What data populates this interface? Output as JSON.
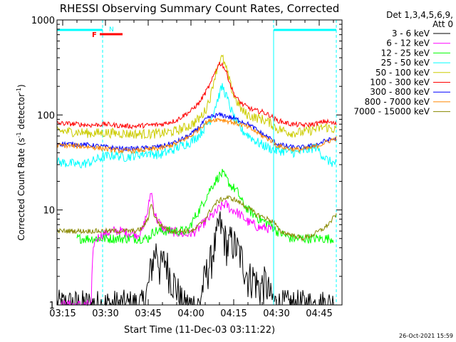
{
  "chart_data": {
    "type": "line",
    "title": "RHESSI Observing Summary Count Rates, Corrected",
    "xlabel": "Start Time (11-Dec-03 03:11:22)",
    "ylabel_main": "Corrected Count Rate (s",
    "ylabel_sup1": "-1",
    "ylabel_mid": " detector",
    "ylabel_sup2": "-1",
    "ylabel_end": ")",
    "yscale": "log",
    "ylim": [
      1,
      1000
    ],
    "xlim_minutes": [
      -2,
      98
    ],
    "yticks": [
      {
        "value": 1,
        "label": "1"
      },
      {
        "value": 10,
        "label": "10"
      },
      {
        "value": 100,
        "label": "100"
      },
      {
        "value": 1000,
        "label": "1000"
      }
    ],
    "xticks": [
      {
        "value": 0,
        "label": "03:15"
      },
      {
        "value": 15,
        "label": "03:30"
      },
      {
        "value": 30,
        "label": "03:45"
      },
      {
        "value": 45,
        "label": "04:00"
      },
      {
        "value": 60,
        "label": "04:15"
      },
      {
        "value": 75,
        "label": "04:30"
      },
      {
        "value": 90,
        "label": "04:45"
      }
    ],
    "legend_header": [
      "Det 1,3,4,5,6,9,",
      "Att 0"
    ],
    "night_markers": [
      {
        "label": "N",
        "start": -2,
        "end": 14
      },
      {
        "label": "",
        "start": 74,
        "end": 96
      }
    ],
    "saa_dashed_lines": [
      14,
      74,
      96
    ],
    "flare_flag": {
      "label": "F",
      "start": 10,
      "end": 18
    },
    "series": [
      {
        "name": "3 - 6 keV",
        "color": "#000000",
        "x": [
          -2,
          5,
          10,
          11,
          13,
          16,
          20,
          28,
          30,
          31,
          33,
          34,
          36,
          38,
          40,
          42,
          44,
          46,
          48,
          50,
          52,
          53,
          54,
          55,
          56,
          57,
          58,
          59,
          60,
          61,
          62,
          63,
          65,
          67,
          69,
          71,
          73,
          75,
          77,
          80,
          83,
          86,
          89,
          92,
          95
        ],
        "values": [
          1,
          1,
          1,
          1,
          1,
          1,
          1,
          1,
          1.5,
          2.5,
          4,
          2.5,
          3,
          2,
          1.5,
          1,
          1,
          1,
          1,
          2,
          3,
          4,
          5,
          7.5,
          6,
          5,
          4,
          5,
          4.5,
          4,
          3.5,
          3,
          2,
          2,
          1.5,
          1.8,
          1.2,
          1,
          1,
          1,
          1,
          1,
          1,
          1,
          1
        ]
      },
      {
        "name": "6 - 12 keV",
        "color": "#ff00ff",
        "x": [
          -2,
          5,
          10,
          11,
          12,
          14,
          16,
          18,
          20,
          22,
          24,
          26,
          28,
          30,
          31,
          32,
          33,
          35,
          37,
          40,
          43,
          46,
          48,
          50,
          52,
          54,
          55,
          56,
          57,
          58,
          59,
          60,
          61,
          62,
          63,
          65,
          67,
          69,
          71,
          73,
          74
        ],
        "values": [
          1,
          1,
          1,
          4.5,
          5,
          5.5,
          5.8,
          6,
          6,
          5.8,
          5.7,
          5.5,
          6,
          10,
          16,
          10,
          8,
          6.5,
          6,
          5.8,
          5.5,
          5.8,
          6.5,
          7.5,
          8.5,
          9.5,
          10.5,
          11,
          11.5,
          11,
          10,
          10,
          9.5,
          9,
          8.5,
          7.5,
          7,
          6.5,
          6.5,
          6.3,
          6
        ]
      },
      {
        "name": "12 - 25 keV",
        "color": "#00ff00",
        "x": [
          5,
          10,
          14,
          18,
          22,
          26,
          30,
          32,
          34,
          36,
          40,
          44,
          46,
          48,
          50,
          51,
          52,
          53,
          54,
          55,
          56,
          57,
          58,
          59,
          60,
          61,
          62,
          63,
          65,
          67,
          69,
          71,
          73,
          75,
          80,
          85,
          90,
          95
        ],
        "values": [
          5,
          5,
          5,
          5,
          5,
          5,
          5,
          6,
          6,
          6,
          6,
          6,
          8,
          10,
          13,
          15,
          17,
          19,
          21,
          23,
          24,
          22,
          20,
          18,
          17,
          16,
          14,
          12,
          10,
          9,
          8,
          7.5,
          7,
          6,
          5,
          5,
          5,
          5
        ]
      },
      {
        "name": "25 - 50 keV",
        "color": "#00ffff",
        "x": [
          -2,
          2,
          6,
          10,
          14,
          18,
          22,
          26,
          30,
          34,
          38,
          42,
          45,
          48,
          50,
          52,
          53,
          54,
          55,
          56,
          57,
          58,
          59,
          60,
          61,
          62,
          63,
          65,
          67,
          69,
          71,
          73,
          75,
          77,
          79,
          82,
          85,
          87,
          89,
          91,
          93,
          95,
          96
        ],
        "values": [
          32,
          31,
          30,
          32,
          36,
          38,
          36,
          38,
          40,
          38,
          42,
          48,
          52,
          62,
          75,
          90,
          110,
          135,
          165,
          200,
          170,
          140,
          115,
          95,
          82,
          75,
          68,
          62,
          55,
          50,
          47,
          44,
          42,
          42,
          41,
          40,
          42,
          44,
          46,
          38,
          33,
          31,
          31
        ]
      },
      {
        "name": "50 - 100 keV",
        "color": "#cccc00",
        "x": [
          -2,
          5,
          10,
          15,
          20,
          25,
          30,
          35,
          40,
          45,
          48,
          50,
          52,
          53,
          54,
          55,
          56,
          57,
          58,
          59,
          60,
          61,
          62,
          63,
          65,
          67,
          70,
          73,
          75,
          80,
          85,
          88,
          90,
          92,
          94,
          96
        ],
        "values": [
          68,
          66,
          64,
          65,
          64,
          63,
          63,
          64,
          68,
          78,
          92,
          110,
          160,
          230,
          300,
          370,
          400,
          330,
          260,
          200,
          160,
          140,
          125,
          110,
          100,
          95,
          90,
          82,
          72,
          65,
          66,
          70,
          72,
          75,
          72,
          70
        ]
      },
      {
        "name": "100 - 300 keV",
        "color": "#ff0000",
        "x": [
          -2,
          5,
          10,
          15,
          20,
          25,
          30,
          35,
          40,
          45,
          48,
          50,
          52,
          53,
          54,
          55,
          56,
          57,
          58,
          59,
          60,
          61,
          62,
          63,
          65,
          67,
          70,
          73,
          75,
          80,
          85,
          88,
          90,
          92,
          94,
          96
        ],
        "values": [
          82,
          80,
          78,
          80,
          77,
          76,
          78,
          80,
          88,
          110,
          135,
          170,
          215,
          260,
          310,
          350,
          340,
          300,
          250,
          200,
          170,
          150,
          140,
          130,
          120,
          112,
          108,
          98,
          88,
          80,
          78,
          80,
          82,
          86,
          83,
          80
        ]
      },
      {
        "name": "300 - 800 keV",
        "color": "#0000ff",
        "x": [
          -2,
          5,
          10,
          15,
          20,
          25,
          30,
          35,
          40,
          45,
          48,
          50,
          52,
          54,
          55,
          56,
          57,
          58,
          59,
          60,
          62,
          65,
          68,
          70,
          73,
          75,
          78,
          80,
          83,
          85,
          87,
          90,
          92,
          94,
          96
        ],
        "values": [
          50,
          49,
          48,
          46,
          44,
          44,
          45,
          47,
          52,
          62,
          75,
          88,
          96,
          99,
          100,
          99,
          98,
          96,
          94,
          92,
          88,
          80,
          70,
          63,
          56,
          50,
          47,
          46,
          45,
          46,
          47,
          50,
          53,
          55,
          56
        ]
      },
      {
        "name": "800 - 7000 keV",
        "color": "#ff8800",
        "x": [
          -2,
          5,
          10,
          15,
          20,
          25,
          30,
          35,
          40,
          45,
          48,
          50,
          52,
          54,
          55,
          56,
          57,
          58,
          59,
          60,
          62,
          65,
          68,
          70,
          73,
          75,
          78,
          80,
          83,
          85,
          87,
          90,
          92,
          94,
          96
        ],
        "values": [
          48,
          47,
          46,
          44,
          42,
          42,
          43,
          45,
          50,
          60,
          72,
          82,
          88,
          90,
          90,
          89,
          88,
          86,
          85,
          83,
          80,
          74,
          66,
          60,
          54,
          48,
          45,
          44,
          43,
          44,
          45,
          48,
          51,
          54,
          57
        ]
      },
      {
        "name": "7000 - 15000 keV",
        "color": "#888800",
        "x": [
          -2,
          2,
          6,
          10,
          14,
          18,
          22,
          26,
          28,
          30,
          31,
          32,
          34,
          38,
          42,
          46,
          50,
          52,
          54,
          56,
          58,
          60,
          62,
          64,
          66,
          68,
          70,
          72,
          74,
          76,
          80,
          84,
          88,
          90,
          92,
          94,
          96
        ],
        "values": [
          6,
          6,
          6,
          6,
          6,
          6,
          6,
          6,
          6.5,
          8,
          12,
          9,
          7,
          6,
          6,
          6,
          8,
          10,
          12,
          13,
          13.5,
          13,
          12,
          11,
          10,
          9,
          8.5,
          8,
          7.5,
          6,
          5.5,
          5,
          5.5,
          6,
          6.5,
          7.5,
          9
        ]
      }
    ]
  },
  "timestamp": "26-Oct-2021 15:59"
}
